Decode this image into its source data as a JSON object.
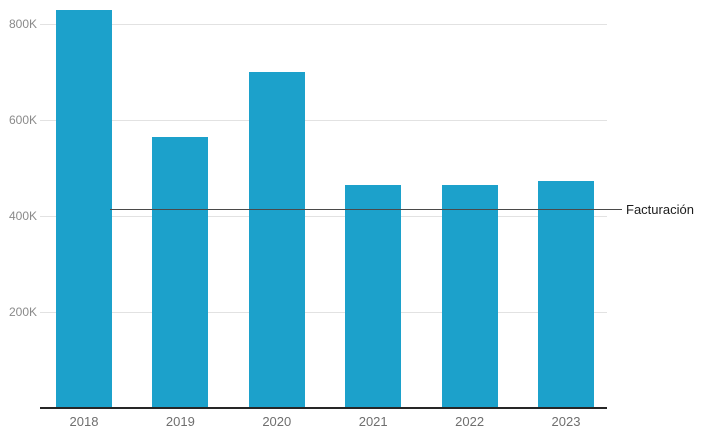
{
  "chart_data": {
    "type": "bar",
    "categories": [
      "2018",
      "2019",
      "2020",
      "2021",
      "2022",
      "2023"
    ],
    "values": [
      830000,
      565000,
      700000,
      465000,
      465000,
      472000
    ],
    "title": "",
    "xlabel": "",
    "ylabel": "",
    "ylim": [
      0,
      850000
    ],
    "yticks": [
      200000,
      400000,
      600000,
      800000
    ],
    "ytick_labels": [
      "200K",
      "400K",
      "600K",
      "800K"
    ],
    "grid": true,
    "legend": "none",
    "annotation_line": {
      "label": "Facturación",
      "value": 415000
    },
    "colors": {
      "bar": "#1CA1CB",
      "gridline": "#e2e2e2",
      "axis": "#262626",
      "annotation_line": "#4a4a4a",
      "annotation_text": "#1c1c1c",
      "tick_text": "#8a8a8a"
    }
  }
}
